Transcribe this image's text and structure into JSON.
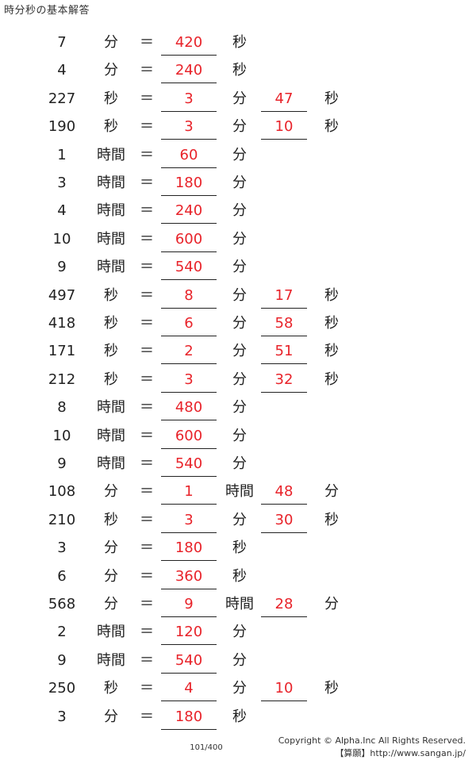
{
  "title": "時分秒の基本解答",
  "rows": [
    {
      "num": "7",
      "unit1": "分",
      "eq": "＝",
      "ans1": "420",
      "unit2": "秒",
      "ans2": "",
      "unit3": ""
    },
    {
      "num": "4",
      "unit1": "分",
      "eq": "＝",
      "ans1": "240",
      "unit2": "秒",
      "ans2": "",
      "unit3": ""
    },
    {
      "num": "227",
      "unit1": "秒",
      "eq": "＝",
      "ans1": "3",
      "unit2": "分",
      "ans2": "47",
      "unit3": "秒"
    },
    {
      "num": "190",
      "unit1": "秒",
      "eq": "＝",
      "ans1": "3",
      "unit2": "分",
      "ans2": "10",
      "unit3": "秒"
    },
    {
      "num": "1",
      "unit1": "時間",
      "eq": "＝",
      "ans1": "60",
      "unit2": "分",
      "ans2": "",
      "unit3": ""
    },
    {
      "num": "3",
      "unit1": "時間",
      "eq": "＝",
      "ans1": "180",
      "unit2": "分",
      "ans2": "",
      "unit3": ""
    },
    {
      "num": "4",
      "unit1": "時間",
      "eq": "＝",
      "ans1": "240",
      "unit2": "分",
      "ans2": "",
      "unit3": ""
    },
    {
      "num": "10",
      "unit1": "時間",
      "eq": "＝",
      "ans1": "600",
      "unit2": "分",
      "ans2": "",
      "unit3": ""
    },
    {
      "num": "9",
      "unit1": "時間",
      "eq": "＝",
      "ans1": "540",
      "unit2": "分",
      "ans2": "",
      "unit3": ""
    },
    {
      "num": "497",
      "unit1": "秒",
      "eq": "＝",
      "ans1": "8",
      "unit2": "分",
      "ans2": "17",
      "unit3": "秒"
    },
    {
      "num": "418",
      "unit1": "秒",
      "eq": "＝",
      "ans1": "6",
      "unit2": "分",
      "ans2": "58",
      "unit3": "秒"
    },
    {
      "num": "171",
      "unit1": "秒",
      "eq": "＝",
      "ans1": "2",
      "unit2": "分",
      "ans2": "51",
      "unit3": "秒"
    },
    {
      "num": "212",
      "unit1": "秒",
      "eq": "＝",
      "ans1": "3",
      "unit2": "分",
      "ans2": "32",
      "unit3": "秒"
    },
    {
      "num": "8",
      "unit1": "時間",
      "eq": "＝",
      "ans1": "480",
      "unit2": "分",
      "ans2": "",
      "unit3": ""
    },
    {
      "num": "10",
      "unit1": "時間",
      "eq": "＝",
      "ans1": "600",
      "unit2": "分",
      "ans2": "",
      "unit3": ""
    },
    {
      "num": "9",
      "unit1": "時間",
      "eq": "＝",
      "ans1": "540",
      "unit2": "分",
      "ans2": "",
      "unit3": ""
    },
    {
      "num": "108",
      "unit1": "分",
      "eq": "＝",
      "ans1": "1",
      "unit2": "時間",
      "ans2": "48",
      "unit3": "分"
    },
    {
      "num": "210",
      "unit1": "秒",
      "eq": "＝",
      "ans1": "3",
      "unit2": "分",
      "ans2": "30",
      "unit3": "秒"
    },
    {
      "num": "3",
      "unit1": "分",
      "eq": "＝",
      "ans1": "180",
      "unit2": "秒",
      "ans2": "",
      "unit3": ""
    },
    {
      "num": "6",
      "unit1": "分",
      "eq": "＝",
      "ans1": "360",
      "unit2": "秒",
      "ans2": "",
      "unit3": ""
    },
    {
      "num": "568",
      "unit1": "分",
      "eq": "＝",
      "ans1": "9",
      "unit2": "時間",
      "ans2": "28",
      "unit3": "分"
    },
    {
      "num": "2",
      "unit1": "時間",
      "eq": "＝",
      "ans1": "120",
      "unit2": "分",
      "ans2": "",
      "unit3": ""
    },
    {
      "num": "9",
      "unit1": "時間",
      "eq": "＝",
      "ans1": "540",
      "unit2": "分",
      "ans2": "",
      "unit3": ""
    },
    {
      "num": "250",
      "unit1": "秒",
      "eq": "＝",
      "ans1": "4",
      "unit2": "分",
      "ans2": "10",
      "unit3": "秒"
    },
    {
      "num": "3",
      "unit1": "分",
      "eq": "＝",
      "ans1": "180",
      "unit2": "秒",
      "ans2": "",
      "unit3": ""
    }
  ],
  "footer": {
    "page": "101/400",
    "copyright": "Copyright © Alpha.Inc All Rights Reserved.",
    "site": "【算願】http://www.sangan.jp/"
  },
  "colors": {
    "answer": "#e8232a",
    "text": "#222222"
  }
}
